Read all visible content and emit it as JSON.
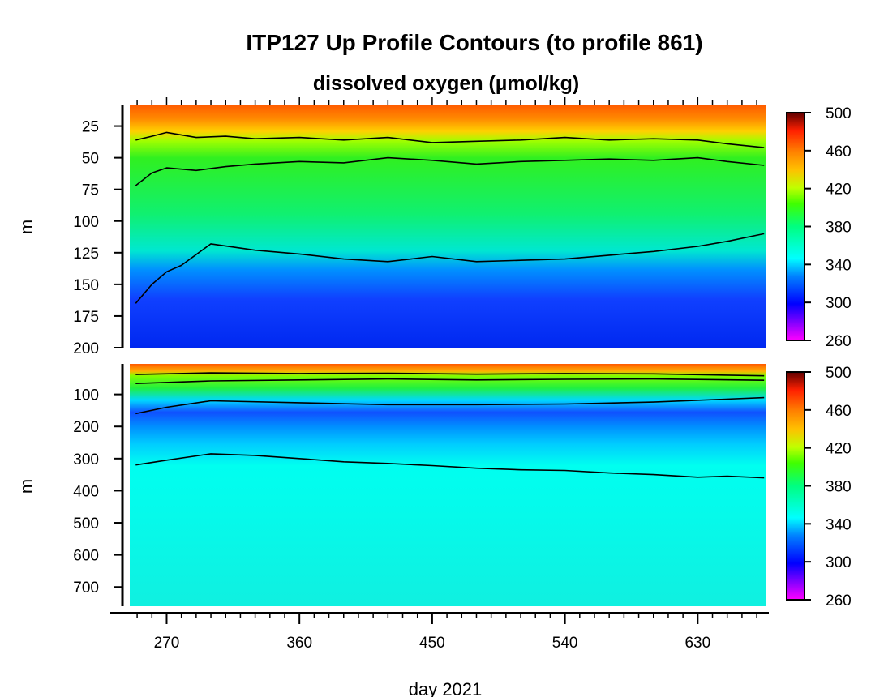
{
  "chart_data": {
    "type": "heatmap",
    "title": "ITP127 Up Profile Contours (to profile 861)",
    "subtitle": "dissolved oxygen (µmol/kg)",
    "xlabel": "day 2021",
    "x_ticks": [
      270,
      360,
      450,
      540,
      630
    ],
    "xlim": [
      245,
      676
    ],
    "panels": [
      {
        "name": "upper",
        "ylabel": "m",
        "y_ticks": [
          25,
          50,
          75,
          100,
          125,
          150,
          175,
          200
        ],
        "ylim": [
          8,
          200
        ],
        "y_inverted": true,
        "colorbar": {
          "ticks": [
            500,
            460,
            420,
            380,
            340,
            300,
            260
          ],
          "range": [
            260,
            500
          ]
        },
        "contours": [
          {
            "level": 420,
            "points": [
              [
                249,
                36
              ],
              [
                260,
                33
              ],
              [
                270,
                30
              ],
              [
                290,
                34
              ],
              [
                310,
                33
              ],
              [
                330,
                35
              ],
              [
                360,
                34
              ],
              [
                390,
                36
              ],
              [
                420,
                34
              ],
              [
                450,
                38
              ],
              [
                480,
                37
              ],
              [
                510,
                36
              ],
              [
                540,
                34
              ],
              [
                570,
                36
              ],
              [
                600,
                35
              ],
              [
                630,
                36
              ],
              [
                650,
                39
              ],
              [
                675,
                42
              ]
            ]
          },
          {
            "level": 380,
            "points": [
              [
                249,
                72
              ],
              [
                260,
                62
              ],
              [
                270,
                58
              ],
              [
                290,
                60
              ],
              [
                310,
                57
              ],
              [
                330,
                55
              ],
              [
                360,
                53
              ],
              [
                390,
                54
              ],
              [
                420,
                50
              ],
              [
                450,
                52
              ],
              [
                480,
                55
              ],
              [
                510,
                53
              ],
              [
                540,
                52
              ],
              [
                570,
                51
              ],
              [
                600,
                52
              ],
              [
                630,
                50
              ],
              [
                650,
                53
              ],
              [
                675,
                56
              ]
            ]
          },
          {
            "level": 340,
            "points": [
              [
                249,
                165
              ],
              [
                260,
                150
              ],
              [
                270,
                140
              ],
              [
                280,
                135
              ],
              [
                300,
                118
              ],
              [
                330,
                123
              ],
              [
                360,
                126
              ],
              [
                390,
                130
              ],
              [
                420,
                132
              ],
              [
                450,
                128
              ],
              [
                480,
                132
              ],
              [
                510,
                131
              ],
              [
                540,
                130
              ],
              [
                570,
                127
              ],
              [
                600,
                124
              ],
              [
                630,
                120
              ],
              [
                650,
                116
              ],
              [
                675,
                110
              ]
            ]
          }
        ]
      },
      {
        "name": "lower",
        "ylabel": "m",
        "y_ticks": [
          100,
          200,
          300,
          400,
          500,
          600,
          700
        ],
        "ylim": [
          5,
          760
        ],
        "y_inverted": true,
        "colorbar": {
          "ticks": [
            500,
            460,
            420,
            380,
            340,
            300,
            260
          ],
          "range": [
            260,
            500
          ]
        },
        "contours": [
          {
            "level": 420,
            "points": [
              [
                249,
                38
              ],
              [
                300,
                33
              ],
              [
                360,
                35
              ],
              [
                420,
                34
              ],
              [
                480,
                37
              ],
              [
                540,
                35
              ],
              [
                600,
                36
              ],
              [
                675,
                42
              ]
            ]
          },
          {
            "level": 380,
            "points": [
              [
                249,
                66
              ],
              [
                300,
                58
              ],
              [
                360,
                55
              ],
              [
                420,
                52
              ],
              [
                480,
                55
              ],
              [
                540,
                53
              ],
              [
                600,
                52
              ],
              [
                675,
                56
              ]
            ]
          },
          {
            "level": 340,
            "points": [
              [
                249,
                160
              ],
              [
                270,
                140
              ],
              [
                300,
                120
              ],
              [
                360,
                126
              ],
              [
                420,
                132
              ],
              [
                480,
                132
              ],
              [
                540,
                130
              ],
              [
                600,
                124
              ],
              [
                675,
                110
              ]
            ]
          },
          {
            "level": 340,
            "points": [
              [
                249,
                320
              ],
              [
                270,
                305
              ],
              [
                300,
                285
              ],
              [
                330,
                290
              ],
              [
                360,
                300
              ],
              [
                390,
                310
              ],
              [
                420,
                315
              ],
              [
                450,
                322
              ],
              [
                480,
                330
              ],
              [
                510,
                335
              ],
              [
                540,
                337
              ],
              [
                570,
                345
              ],
              [
                600,
                350
              ],
              [
                630,
                358
              ],
              [
                650,
                355
              ],
              [
                675,
                360
              ]
            ]
          }
        ]
      }
    ]
  }
}
